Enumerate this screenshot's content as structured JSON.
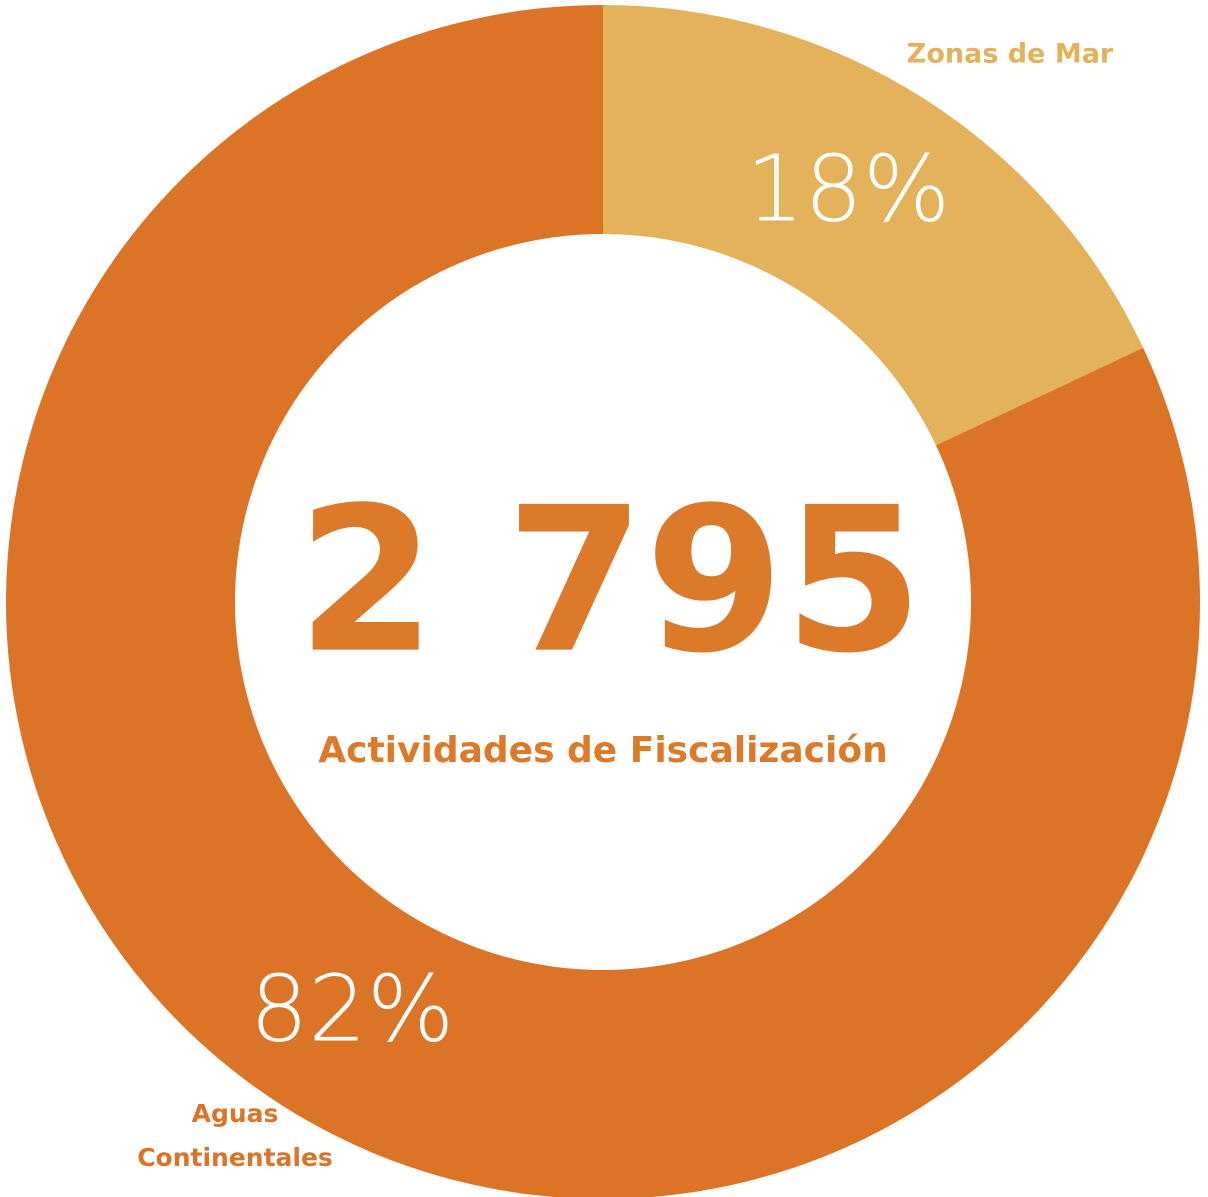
{
  "chart_data": {
    "type": "donut",
    "categories": [
      "Zonas de Mar",
      "Aguas Continentales"
    ],
    "values": [
      18,
      82
    ],
    "value_labels": [
      "18%",
      "82%"
    ],
    "colors": [
      "#e3b25a",
      "#dc7428"
    ],
    "center_value": "2 795",
    "center_label": "Actividades de Fiscalización"
  }
}
